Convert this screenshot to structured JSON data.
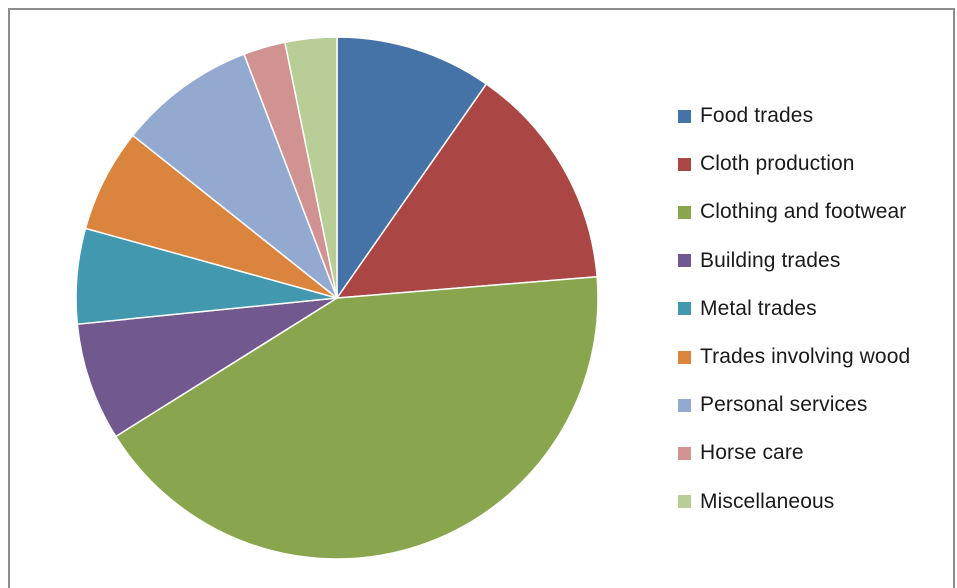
{
  "chart_data": {
    "type": "pie",
    "title": "",
    "start_angle_deg": 0,
    "direction": "clockwise",
    "legend_position": "right",
    "slices": [
      {
        "label": "Food trades",
        "value": 9.7,
        "color": "#4572A7"
      },
      {
        "label": "Cloth production",
        "value": 14.0,
        "color": "#AA4643"
      },
      {
        "label": "Clothing and footwear",
        "value": 42.4,
        "color": "#89A54E"
      },
      {
        "label": "Building trades",
        "value": 7.3,
        "color": "#71588F"
      },
      {
        "label": "Metal trades",
        "value": 5.9,
        "color": "#4198AF"
      },
      {
        "label": "Trades involving wood",
        "value": 6.4,
        "color": "#DB843D"
      },
      {
        "label": "Personal services",
        "value": 8.5,
        "color": "#93A9CF"
      },
      {
        "label": "Horse care",
        "value": 2.6,
        "color": "#D19392"
      },
      {
        "label": "Miscellaneous",
        "value": 3.2,
        "color": "#B9CD96"
      }
    ]
  }
}
